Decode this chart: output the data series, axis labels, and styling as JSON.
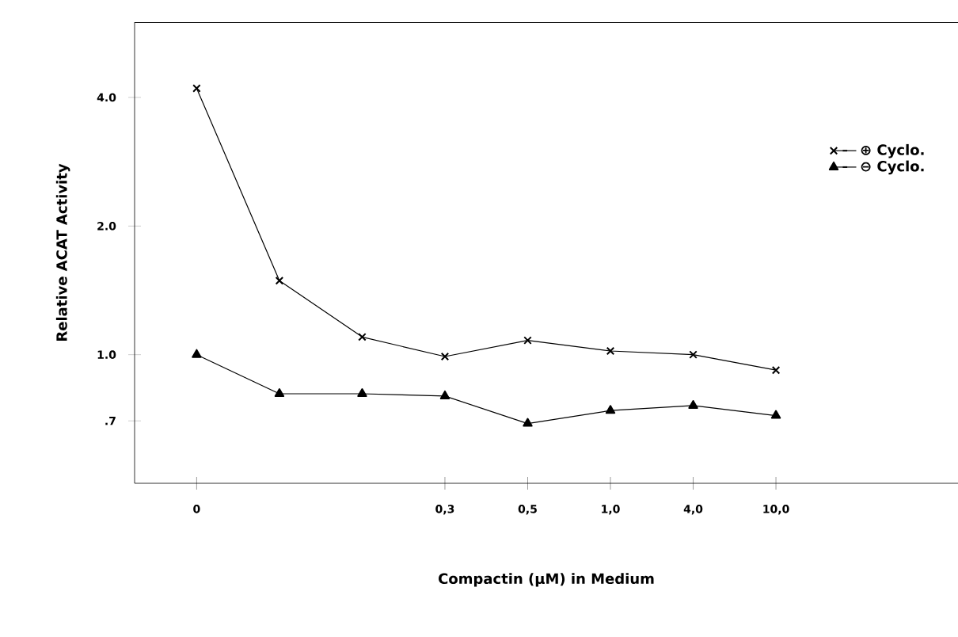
{
  "chart_data": {
    "type": "line",
    "xlabel": "Compactin (µM) in Medium",
    "ylabel": "Relative ACAT Activity",
    "categories": [
      "0",
      null,
      null,
      "0,3",
      "0,5",
      "1,0",
      "4,0",
      "10,0"
    ],
    "series": [
      {
        "name": "⊕ Cyclo.",
        "color": "#000000",
        "marker": "cross",
        "values": [
          4.2,
          1.49,
          1.1,
          0.99,
          1.08,
          1.02,
          1.0,
          0.92
        ]
      },
      {
        "name": "⊖ Cyclo.",
        "color": "#000000",
        "marker": "triangle",
        "values": [
          1.0,
          0.81,
          0.81,
          0.8,
          0.69,
          0.74,
          0.76,
          0.72
        ]
      }
    ],
    "log": "y",
    "ylim": [
      0.5,
      6
    ],
    "yticks": [
      {
        "value": 0.7,
        "label": ".7"
      },
      {
        "value": 1.0,
        "label": "1.0"
      },
      {
        "value": 2.0,
        "label": "2.0"
      },
      {
        "value": 4.0,
        "label": "4.0"
      }
    ],
    "grid": false,
    "legend": "top right",
    "line_style": "solid"
  }
}
